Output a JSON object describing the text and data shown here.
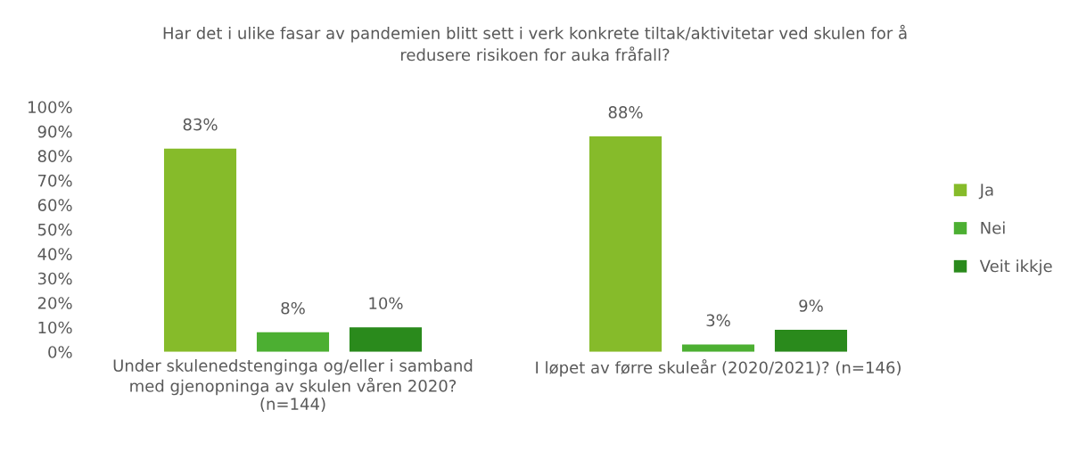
{
  "chart_data": {
    "type": "bar",
    "title": "Har det i ulike fasar av pandemien blitt sett i verk konkrete tiltak/aktivitetar ved skulen for å\nredusere risikoen for auka fråfall?",
    "categories": [
      "Under skulenedstenginga og/eller i samband\nmed gjenopninga av skulen våren 2020?\n(n=144)",
      "I løpet av førre skuleår (2020/2021)? (n=146)"
    ],
    "series": [
      {
        "name": "Ja",
        "color": "#86bb2a",
        "values": [
          83,
          88
        ],
        "value_labels": [
          "83%",
          "88%"
        ]
      },
      {
        "name": "Nei",
        "color": "#4caf32",
        "values": [
          8,
          3
        ],
        "value_labels": [
          "8%",
          "3%"
        ]
      },
      {
        "name": "Veit ikkje",
        "color": "#2a8a1c",
        "values": [
          10,
          9
        ],
        "value_labels": [
          "10%",
          "9%"
        ]
      }
    ],
    "ylim": [
      0,
      100
    ],
    "yticks": [
      {
        "value": 0,
        "label": "0%"
      },
      {
        "value": 10,
        "label": "10%"
      },
      {
        "value": 20,
        "label": "20%"
      },
      {
        "value": 30,
        "label": "30%"
      },
      {
        "value": 40,
        "label": "40%"
      },
      {
        "value": 50,
        "label": "50%"
      },
      {
        "value": 60,
        "label": "60%"
      },
      {
        "value": 70,
        "label": "70%"
      },
      {
        "value": 80,
        "label": "80%"
      },
      {
        "value": 90,
        "label": "90%"
      },
      {
        "value": 100,
        "label": "100%"
      }
    ],
    "grid": false,
    "legend": "right"
  }
}
